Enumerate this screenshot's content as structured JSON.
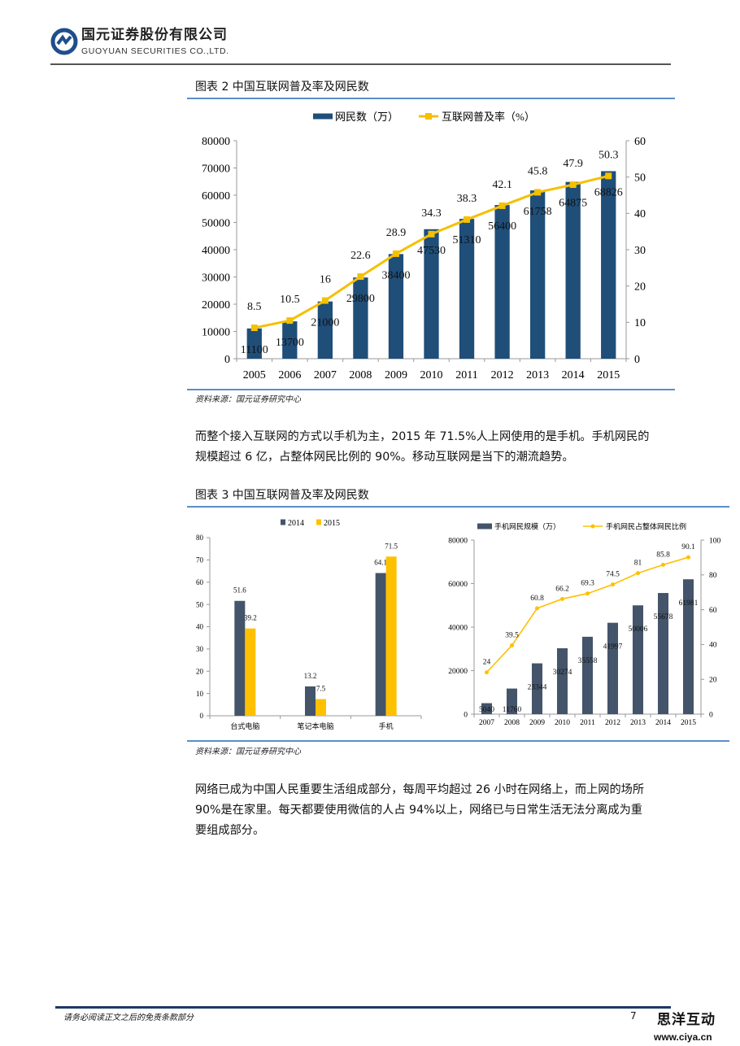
{
  "header": {
    "company_cn": "国元证券股份有限公司",
    "company_en": "GUOYUAN SECURITIES CO.,LTD.",
    "logo_color": "#1f4e8c"
  },
  "figure2": {
    "title": "图表 2 中国互联网普及率及网民数",
    "source": "资料来源：国元证券研究中心"
  },
  "paragraph1": [
    "而整个接入互联网的方式以手机为主，2015 年 71.5%人上网使用的是手机。手机网民的",
    "规模超过 6 亿，占整体网民比例的 90%。移动互联网是当下的潮流趋势。"
  ],
  "figure3": {
    "title": "图表 3 中国互联网普及率及网民数",
    "source": "资料来源：国元证券研究中心"
  },
  "paragraph2": [
    "网络已成为中国人民重要生活组成部分，每周平均超过 26 小时在网络上，而上网的场所",
    "90%是在家里。每天都要使用微信的人占 94%以上，网络已与日常生活无法分离成为重",
    "要组成部分。"
  ],
  "footer": {
    "disclaimer": "请务必阅读正文之后的免责条款部分",
    "page": "7",
    "watermark_cn": "思洋互动",
    "watermark_url": "www.ciya.cn"
  },
  "chart_data": [
    {
      "type": "bar+line",
      "categories": [
        "2005",
        "2006",
        "2007",
        "2008",
        "2009",
        "2010",
        "2011",
        "2012",
        "2013",
        "2014",
        "2015"
      ],
      "series": [
        {
          "name": "网民数（万）",
          "kind": "bar",
          "axis": "left",
          "color": "#1f4e79",
          "values": [
            11100,
            13700,
            21000,
            29800,
            38400,
            47530,
            51310,
            56400,
            61758,
            64875,
            68826
          ],
          "labels": [
            "11100",
            "13700",
            "21000",
            "29800",
            "38400",
            "47530",
            "51310",
            "56400",
            "61758",
            "64875",
            "68826"
          ]
        },
        {
          "name": "互联网普及率（%）",
          "kind": "line",
          "axis": "right",
          "color": "#f5c000",
          "marker": "square",
          "values": [
            8.5,
            10.5,
            16,
            22.6,
            28.9,
            34.3,
            38.3,
            42.1,
            45.8,
            47.9,
            50.3
          ],
          "labels": [
            "8.5",
            "10.5",
            "16",
            "22.6",
            "28.9",
            "34.3",
            "38.3",
            "42.1",
            "45.8",
            "47.9",
            "50.3"
          ]
        }
      ],
      "ylim": [
        0,
        80000
      ],
      "yticks": [
        "0",
        "10000",
        "20000",
        "30000",
        "40000",
        "50000",
        "60000",
        "70000",
        "80000"
      ],
      "y2lim": [
        0,
        60
      ],
      "y2ticks": [
        "0",
        "10",
        "20",
        "30",
        "40",
        "50",
        "60"
      ],
      "legend": "top",
      "grid": false
    },
    {
      "type": "bar",
      "categories": [
        "台式电脑",
        "笔记本电脑",
        "手机"
      ],
      "series": [
        {
          "name": "2014",
          "kind": "bar",
          "axis": "left",
          "color": "#44546a",
          "values": [
            51.6,
            13.2,
            64.1
          ],
          "labels": [
            "51.6",
            "13.2",
            "64.1"
          ]
        },
        {
          "name": "2015",
          "kind": "bar",
          "axis": "left",
          "color": "#ffc000",
          "values": [
            39.2,
            7.5,
            71.5
          ],
          "labels": [
            "39.2",
            "7.5",
            "71.5"
          ]
        }
      ],
      "ylim": [
        0,
        80
      ],
      "yticks": [
        "0",
        "10",
        "20",
        "30",
        "40",
        "50",
        "60",
        "70",
        "80"
      ],
      "legend": "top",
      "grid": false
    },
    {
      "type": "bar+line",
      "categories": [
        "2007",
        "2008",
        "2009",
        "2010",
        "2011",
        "2012",
        "2013",
        "2014",
        "2015"
      ],
      "series": [
        {
          "name": "手机网民规模（万）",
          "kind": "bar",
          "axis": "left",
          "color": "#44546a",
          "values": [
            5040,
            11760,
            23344,
            30274,
            35558,
            41997,
            50006,
            55678,
            61981
          ],
          "labels": [
            "5040",
            "11760",
            "23344",
            "30274",
            "35558",
            "41997",
            "50006",
            "55678",
            "61981"
          ]
        },
        {
          "name": "手机网民占整体网民比例",
          "kind": "line",
          "axis": "right",
          "color": "#ffc000",
          "marker": "diamond",
          "values": [
            24,
            39.5,
            60.8,
            66.2,
            69.3,
            74.5,
            81,
            85.8,
            90.1
          ],
          "labels": [
            "24",
            "39.5",
            "60.8",
            "66.2",
            "69.3",
            "74.5",
            "81",
            "85.8",
            "90.1"
          ]
        }
      ],
      "ylim": [
        0,
        80000
      ],
      "yticks": [
        "0",
        "20000",
        "40000",
        "60000",
        "80000"
      ],
      "y2lim": [
        0,
        100
      ],
      "y2ticks": [
        "0",
        "20",
        "40",
        "60",
        "80",
        "100"
      ],
      "legend": "top",
      "grid": false
    }
  ]
}
